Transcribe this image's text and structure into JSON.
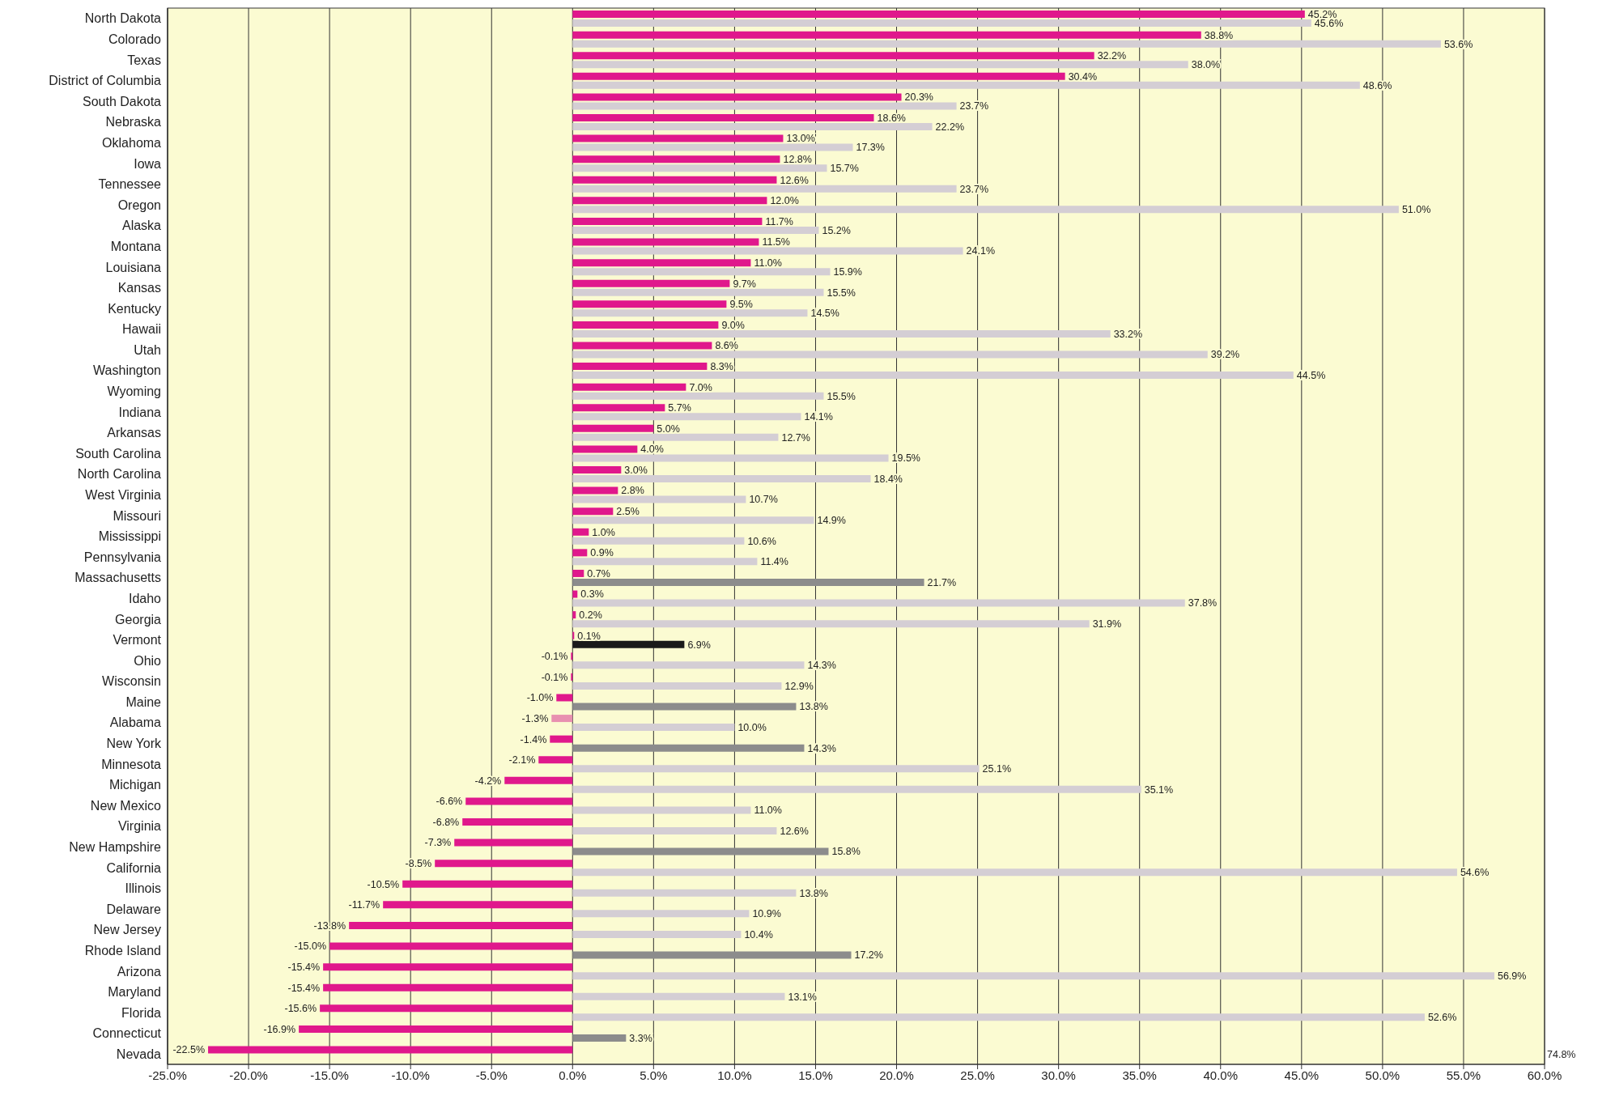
{
  "chart_data": {
    "type": "bar",
    "orientation": "horizontal",
    "categories": [
      "North Dakota",
      "Colorado",
      "Texas",
      "District of Columbia",
      "South Dakota",
      "Nebraska",
      "Oklahoma",
      "Iowa",
      "Tennessee",
      "Oregon",
      "Alaska",
      "Montana",
      "Louisiana",
      "Kansas",
      "Kentucky",
      "Hawaii",
      "Utah",
      "Washington",
      "Wyoming",
      "Indiana",
      "Arkansas",
      "South Carolina",
      "North Carolina",
      "West Virginia",
      "Missouri",
      "Mississippi",
      "Pennsylvania",
      "Massachusetts",
      "Idaho",
      "Georgia",
      "Vermont",
      "Ohio",
      "Wisconsin",
      "Maine",
      "Alabama",
      "New York",
      "Minnesota",
      "Michigan",
      "New Mexico",
      "Virginia",
      "New Hampshire",
      "California",
      "Illinois",
      "Delaware",
      "New Jersey",
      "Rhode Island",
      "Arizona",
      "Maryland",
      "Florida",
      "Connecticut",
      "Nevada"
    ],
    "series": [
      {
        "colors": [
          "#e0188c",
          "#e0188c",
          "#e0188c",
          "#e0188c",
          "#e0188c",
          "#e0188c",
          "#e0188c",
          "#e0188c",
          "#e0188c",
          "#e0188c",
          "#e0188c",
          "#e0188c",
          "#e0188c",
          "#e0188c",
          "#e0188c",
          "#e0188c",
          "#e0188c",
          "#e0188c",
          "#e0188c",
          "#e0188c",
          "#e0188c",
          "#e0188c",
          "#e0188c",
          "#e0188c",
          "#e0188c",
          "#e0188c",
          "#e0188c",
          "#e0188c",
          "#e0188c",
          "#e0188c",
          "#e0188c",
          "#e0188c",
          "#e0188c",
          "#e0188c",
          "#e890b0",
          "#e0188c",
          "#e0188c",
          "#e0188c",
          "#e0188c",
          "#e0188c",
          "#e0188c",
          "#e0188c",
          "#e0188c",
          "#e0188c",
          "#e0188c",
          "#e0188c",
          "#e0188c",
          "#e0188c",
          "#e0188c",
          "#e0188c",
          "#e0188c"
        ],
        "values": [
          45.2,
          38.8,
          32.2,
          30.4,
          20.3,
          18.6,
          13.0,
          12.8,
          12.6,
          12.0,
          11.7,
          11.5,
          11.0,
          9.7,
          9.5,
          9.0,
          8.6,
          8.3,
          7.0,
          5.7,
          5.0,
          4.0,
          3.0,
          2.8,
          2.5,
          1.0,
          0.9,
          0.7,
          0.3,
          0.2,
          0.1,
          -0.1,
          -0.1,
          -1.0,
          -1.3,
          -1.4,
          -2.1,
          -4.2,
          -6.6,
          -6.8,
          -7.3,
          -8.5,
          -10.5,
          -11.7,
          -13.8,
          -15.0,
          -15.4,
          -15.4,
          -15.6,
          -16.9,
          -22.5
        ],
        "value_labels": [
          "45.2%",
          "38.8%",
          "32.2%",
          "30.4%",
          "20.3%",
          "18.6%",
          "13.0%",
          "12.8%",
          "12.6%",
          "12.0%",
          "11.7%",
          "11.5%",
          "11.0%",
          "9.7%",
          "9.5%",
          "9.0%",
          "8.6%",
          "8.3%",
          "7.0%",
          "5.7%",
          "5.0%",
          "4.0%",
          "3.0%",
          "2.8%",
          "2.5%",
          "1.0%",
          "0.9%",
          "0.7%",
          "0.3%",
          "0.2%",
          "0.1%",
          "-0.1%",
          "-0.1%",
          "-1.0%",
          "-1.3%",
          "-1.4%",
          "-2.1%",
          "-4.2%",
          "-6.6%",
          "-6.8%",
          "-7.3%",
          "-8.5%",
          "-10.5%",
          "-11.7%",
          "-13.8%",
          "-15.0%",
          "-15.4%",
          "-15.4%",
          "-15.6%",
          "-16.9%",
          "-22.5%"
        ]
      },
      {
        "colors": [
          "#d4ced4",
          "#d4ced4",
          "#d4ced4",
          "#d4ced4",
          "#d4ced4",
          "#d4ced4",
          "#d4ced4",
          "#d4ced4",
          "#d4ced4",
          "#d4ced4",
          "#d4ced4",
          "#d4ced4",
          "#d4ced4",
          "#d4ced4",
          "#d4ced4",
          "#d4ced4",
          "#d4ced4",
          "#d4ced4",
          "#d4ced4",
          "#d4ced4",
          "#d4ced4",
          "#d4ced4",
          "#d4ced4",
          "#d4ced4",
          "#d4ced4",
          "#d4ced4",
          "#d4ced4",
          "#8c8c8c",
          "#d4ced4",
          "#d4ced4",
          "#1a1a1a",
          "#d4ced4",
          "#d4ced4",
          "#8c8c8c",
          "#d4ced4",
          "#8c8c8c",
          "#d4ced4",
          "#d4ced4",
          "#d4ced4",
          "#d4ced4",
          "#8c8c8c",
          "#d4ced4",
          "#d4ced4",
          "#d4ced4",
          "#d4ced4",
          "#8c8c8c",
          "#d4ced4",
          "#d4ced4",
          "#d4ced4",
          "#8c8c8c",
          "#d4ced4"
        ],
        "values": [
          45.6,
          53.6,
          38.0,
          48.6,
          23.7,
          22.2,
          17.3,
          15.7,
          23.7,
          51.0,
          15.2,
          24.1,
          15.9,
          15.5,
          14.5,
          33.2,
          39.2,
          44.5,
          15.5,
          14.1,
          12.7,
          19.5,
          18.4,
          10.7,
          14.9,
          10.6,
          11.4,
          21.7,
          37.8,
          31.9,
          6.9,
          14.3,
          12.9,
          13.8,
          10.0,
          14.3,
          25.1,
          35.1,
          11.0,
          12.6,
          15.8,
          54.6,
          13.8,
          10.9,
          10.4,
          17.2,
          56.9,
          13.1,
          52.6,
          3.3,
          null
        ],
        "value_labels": [
          "45.6%",
          "53.6%",
          "38.0%",
          "48.6%",
          "23.7%",
          "22.2%",
          "17.3%",
          "15.7%",
          "23.7%",
          "51.0%",
          "15.2%",
          "24.1%",
          "15.9%",
          "15.5%",
          "14.5%",
          "33.2%",
          "39.2%",
          "44.5%",
          "15.5%",
          "14.1%",
          "12.7%",
          "19.5%",
          "18.4%",
          "10.7%",
          "14.9%",
          "10.6%",
          "11.4%",
          "21.7%",
          "37.8%",
          "31.9%",
          "6.9%",
          "14.3%",
          "12.9%",
          "13.8%",
          "10.0%",
          "14.3%",
          "25.1%",
          "35.1%",
          "11.0%",
          "12.6%",
          "15.8%",
          "54.6%",
          "13.8%",
          "10.9%",
          "10.4%",
          "17.2%",
          "56.9%",
          "13.1%",
          "52.6%",
          "3.3%",
          null
        ]
      }
    ],
    "annotations": [
      "74.8%"
    ],
    "xlim": [
      -25,
      60
    ],
    "xticks": [
      {
        "value": -25,
        "label": "-25.0%"
      },
      {
        "value": -20,
        "label": "-20.0%"
      },
      {
        "value": -15,
        "label": "-15.0%"
      },
      {
        "value": -10,
        "label": "-10.0%"
      },
      {
        "value": -5,
        "label": "-5.0%"
      },
      {
        "value": 0,
        "label": "0.0%"
      },
      {
        "value": 5,
        "label": "5.0%"
      },
      {
        "value": 10,
        "label": "10.0%"
      },
      {
        "value": 15,
        "label": "15.0%"
      },
      {
        "value": 20,
        "label": "20.0%"
      },
      {
        "value": 25,
        "label": "25.0%"
      },
      {
        "value": 30,
        "label": "30.0%"
      },
      {
        "value": 35,
        "label": "35.0%"
      },
      {
        "value": 40,
        "label": "40.0%"
      },
      {
        "value": 45,
        "label": "45.0%"
      },
      {
        "value": 50,
        "label": "50.0%"
      },
      {
        "value": 55,
        "label": "55.0%"
      },
      {
        "value": 60,
        "label": "60.0%"
      }
    ],
    "grid": "x",
    "legend": false
  }
}
